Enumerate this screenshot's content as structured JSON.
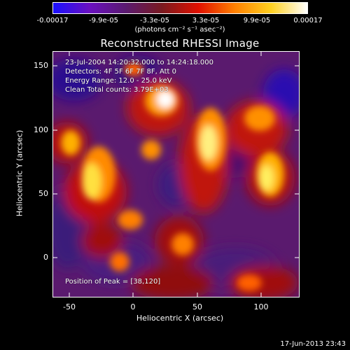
{
  "colorbar": {
    "ticks": [
      "-0.00017",
      "-9.9e-05",
      "-3.3e-05",
      "3.3e-05",
      "9.9e-05",
      "0.00017"
    ],
    "units_label": "(photons cm⁻² s⁻¹ asec⁻²)",
    "colors": [
      "#1a10ff",
      "#6a10c0",
      "#5a1a70",
      "#7a1a20",
      "#e01000",
      "#ff8000",
      "#ffd020",
      "#ffffff"
    ]
  },
  "title": "Reconstructed RHESSI Image",
  "annotations": {
    "time_range": "23-Jul-2004 14:20:32.000 to 14:24:18.000",
    "detectors": "Detectors: 4F 5F 6F 7F 8F, Att 0",
    "energy_range": "Energy Range: 12.0 - 25.0 keV",
    "clean": "Clean     Total counts: 3.79E+03",
    "peak_position": "Position of Peak = [38,120]"
  },
  "axes": {
    "xlabel": "Heliocentric X (arcsec)",
    "ylabel": "Heliocentric Y (arcsec)",
    "xticks": [
      "-50",
      "0",
      "50",
      "100"
    ],
    "yticks": [
      "0",
      "50",
      "100",
      "150"
    ],
    "xlim": [
      -63,
      130
    ],
    "ylim": [
      -32,
      160
    ]
  },
  "footer": {
    "timestamp": "17-Jun-2013 23:43"
  }
}
